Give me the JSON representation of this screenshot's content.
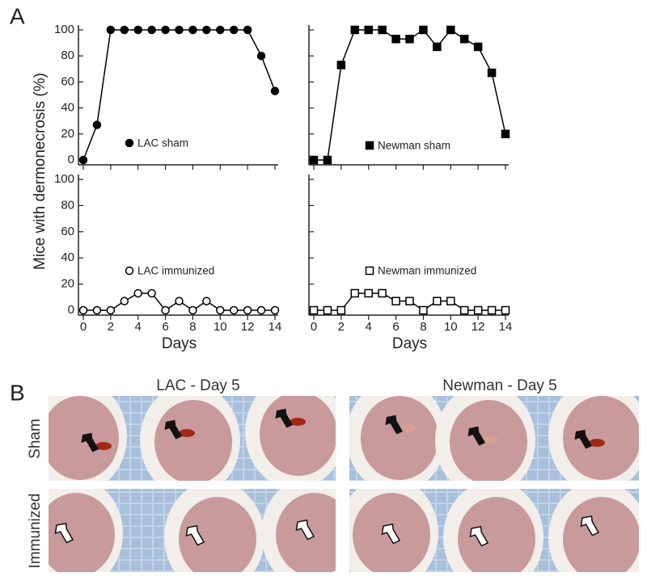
{
  "panel_labels": [
    "A",
    "B"
  ],
  "shared_ylabel": "Mice with dermonecrosis (%)",
  "chart_data": [
    {
      "type": "line",
      "x": [
        0,
        1,
        2,
        3,
        4,
        5,
        6,
        7,
        8,
        9,
        10,
        11,
        12,
        13,
        14
      ],
      "series": [
        {
          "name": "LAC sham",
          "marker": "circle",
          "filled": true,
          "color": "#000000",
          "values": [
            0,
            27,
            100,
            100,
            100,
            100,
            100,
            100,
            100,
            100,
            100,
            100,
            100,
            80,
            53
          ]
        }
      ],
      "xlim": [
        0,
        14
      ],
      "ylim": [
        0,
        100
      ],
      "xticks": [
        0,
        2,
        4,
        6,
        8,
        10,
        12,
        14
      ],
      "yticks": [
        0,
        20,
        40,
        60,
        80,
        100
      ]
    },
    {
      "type": "line",
      "x": [
        0,
        1,
        2,
        3,
        4,
        5,
        6,
        7,
        8,
        9,
        10,
        11,
        12,
        13,
        14
      ],
      "series": [
        {
          "name": "Newman sham",
          "marker": "square",
          "filled": true,
          "color": "#000000",
          "values": [
            0,
            0,
            73,
            100,
            100,
            100,
            93,
            93,
            100,
            87,
            100,
            93,
            87,
            67,
            20
          ]
        }
      ],
      "xlim": [
        0,
        14
      ],
      "ylim": [
        0,
        100
      ],
      "xticks": [
        0,
        2,
        4,
        6,
        8,
        10,
        12,
        14
      ],
      "yticks": [
        0,
        20,
        40,
        60,
        80,
        100
      ]
    },
    {
      "type": "line",
      "x": [
        0,
        1,
        2,
        3,
        4,
        5,
        6,
        7,
        8,
        9,
        10,
        11,
        12,
        13,
        14
      ],
      "xlabel": "Days",
      "series": [
        {
          "name": "LAC immunized",
          "marker": "circle",
          "filled": false,
          "color": "#000000",
          "values": [
            0,
            0,
            0,
            7,
            13,
            13,
            0,
            7,
            0,
            7,
            0,
            0,
            0,
            0,
            0
          ]
        }
      ],
      "xlim": [
        0,
        14
      ],
      "ylim": [
        0,
        100
      ],
      "xticks": [
        0,
        2,
        4,
        6,
        8,
        10,
        12,
        14
      ],
      "yticks": [
        0,
        20,
        40,
        60,
        80,
        100
      ]
    },
    {
      "type": "line",
      "x": [
        0,
        1,
        2,
        3,
        4,
        5,
        6,
        7,
        8,
        9,
        10,
        11,
        12,
        13,
        14
      ],
      "xlabel": "Days",
      "series": [
        {
          "name": "Newman immunized",
          "marker": "square",
          "filled": false,
          "color": "#000000",
          "values": [
            0,
            0,
            0,
            13,
            13,
            13,
            7,
            7,
            0,
            7,
            7,
            0,
            0,
            0,
            0
          ]
        }
      ],
      "xlim": [
        0,
        14
      ],
      "ylim": [
        0,
        100
      ],
      "xticks": [
        0,
        2,
        4,
        6,
        8,
        10,
        12,
        14
      ],
      "yticks": [
        0,
        20,
        40,
        60,
        80,
        100
      ]
    }
  ],
  "photos": {
    "columns": [
      "LAC - Day 5",
      "Newman - Day 5"
    ],
    "rows": [
      "Sham",
      "Immunized"
    ]
  }
}
